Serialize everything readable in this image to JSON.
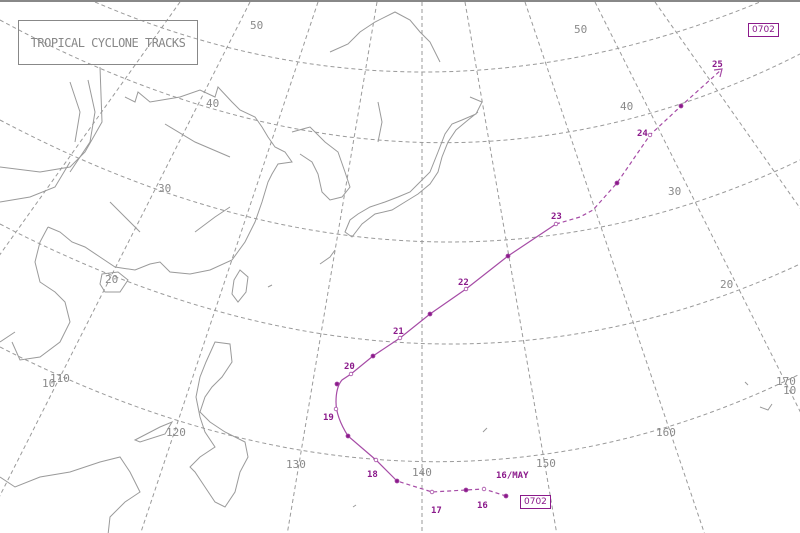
{
  "title": "TROPICAL CYCLONE TRACKS",
  "cyclone_id": "0702",
  "colors": {
    "track": "#a64ca6",
    "label": "#8b1a8b",
    "grid": "#9a9a9a"
  },
  "track_labels": [
    "16/MAY",
    "16",
    "17",
    "18",
    "19",
    "20",
    "21",
    "22",
    "23",
    "24",
    "25"
  ],
  "latitude_labels": [
    "10",
    "20",
    "30",
    "40",
    "50",
    "10",
    "20",
    "30",
    "40",
    "50"
  ],
  "longitude_labels": [
    "110",
    "120",
    "130",
    "140",
    "150",
    "160",
    "170"
  ]
}
